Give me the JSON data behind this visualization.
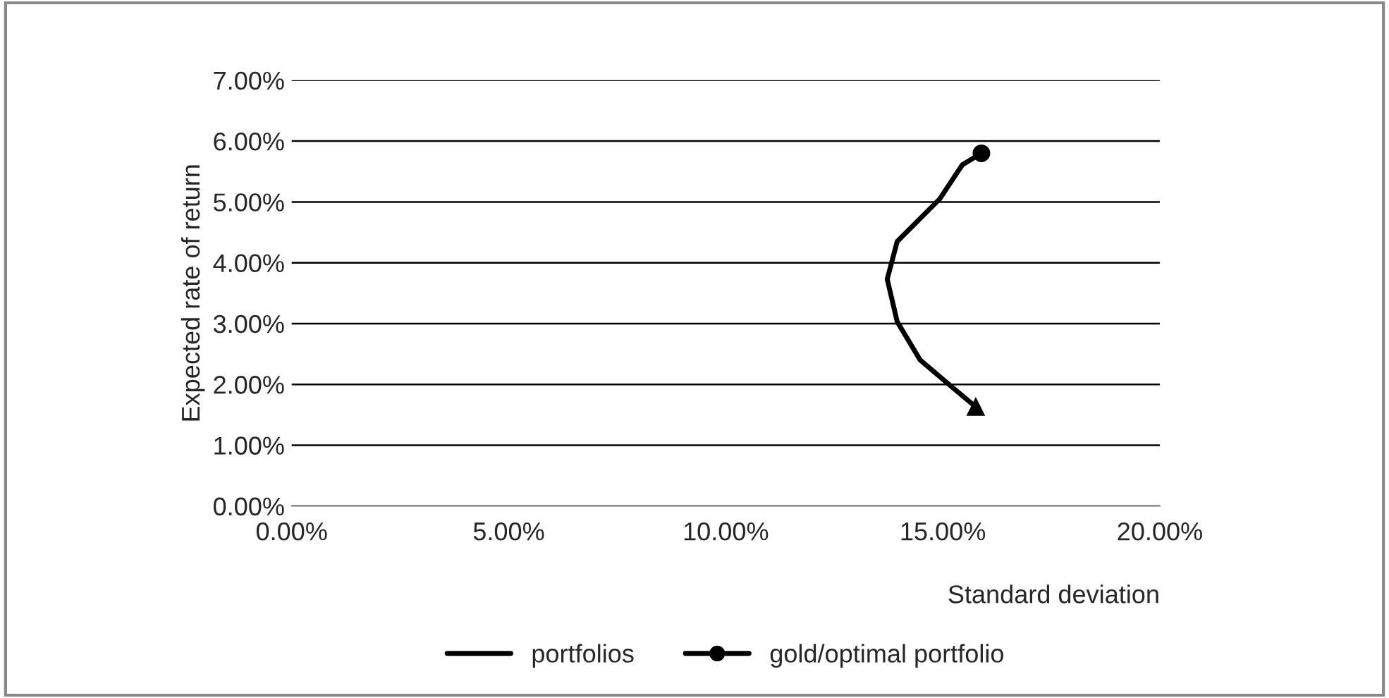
{
  "chart_data": {
    "type": "line",
    "xlabel": "Standard deviation",
    "ylabel": "Expected rate of return",
    "series": [
      {
        "color": "#000000",
        "marker": "triangle",
        "x": [
          15.76
        ],
        "values": [
          1.63
        ]
      },
      {
        "name": "portfolios",
        "color": "#000000",
        "marker": "none",
        "x": [
          15.76,
          15.24,
          14.48,
          13.95,
          13.72,
          13.95,
          14.93,
          15.45,
          15.89
        ],
        "values": [
          1.63,
          1.94,
          2.4,
          3.03,
          3.73,
          4.35,
          5.05,
          5.61,
          5.8
        ]
      },
      {
        "name": "gold/optimal portfolio",
        "color": "#000000",
        "marker": "circle",
        "x": [
          15.89
        ],
        "values": [
          5.8
        ]
      }
    ],
    "xlim": [
      0,
      20
    ],
    "ylim": [
      0,
      7
    ],
    "xticks": [
      {
        "value": 0,
        "label": "0.00%"
      },
      {
        "value": 5,
        "label": "5.00%"
      },
      {
        "value": 10,
        "label": "10.00%"
      },
      {
        "value": 15,
        "label": "15.00%"
      },
      {
        "value": 20,
        "label": "20.00%"
      }
    ],
    "yticks": [
      {
        "value": 0,
        "label": "0.00%"
      },
      {
        "value": 1,
        "label": "1.00%"
      },
      {
        "value": 2,
        "label": "2.00%"
      },
      {
        "value": 3,
        "label": "3.00%"
      },
      {
        "value": 4,
        "label": "4.00%"
      },
      {
        "value": 5,
        "label": "5.00%"
      },
      {
        "value": 6,
        "label": "6.00%"
      },
      {
        "value": 7,
        "label": "7.00%"
      }
    ],
    "grid": "y",
    "legend": "bottom"
  }
}
